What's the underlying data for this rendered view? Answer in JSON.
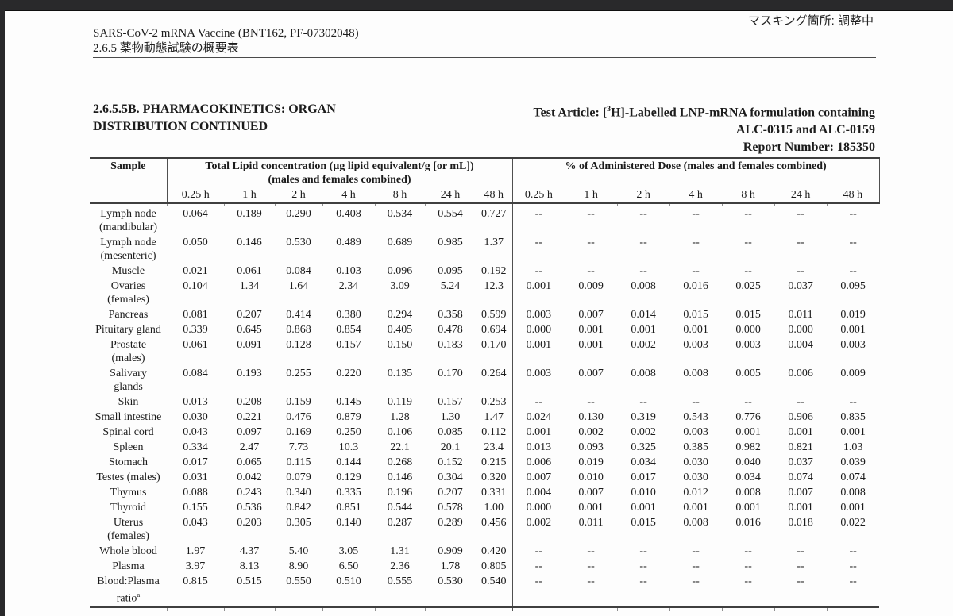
{
  "page": {
    "masking_note": "マスキング箇所: 調整中",
    "header_line1": "SARS-CoV-2 mRNA Vaccine (BNT162, PF-07302048)",
    "header_line2": "2.6.5 薬物動態試験の概要表"
  },
  "title": {
    "left_line1": "2.6.5.5B.  PHARMACOKINETICS: ORGAN",
    "left_line2": "DISTRIBUTION CONTINUED",
    "right1_pre": "Test Article: [",
    "right1_sup": "3",
    "right1_post": "H]-Labelled LNP-mRNA formulation containing",
    "right_line2": "ALC-0315 and ALC-0159",
    "right_line3": "Report Number: 185350"
  },
  "table": {
    "sample_header": "Sample",
    "lipid_header_line1": "Total Lipid concentration (µg lipid equivalent/g [or mL])",
    "lipid_header_line2": "(males and females combined)",
    "dose_header": "% of Administered Dose (males and females combined)",
    "time_labels": [
      "0.25 h",
      "1 h",
      "2 h",
      "4 h",
      "8 h",
      "24 h",
      "48 h"
    ],
    "rows": [
      {
        "sample_lines": [
          "Lymph node",
          "(mandibular)"
        ],
        "lipid": [
          "0.064",
          "0.189",
          "0.290",
          "0.408",
          "0.534",
          "0.554",
          "0.727"
        ],
        "dose": [
          "--",
          "--",
          "--",
          "--",
          "--",
          "--",
          "--"
        ]
      },
      {
        "sample_lines": [
          "Lymph node",
          "(mesenteric)"
        ],
        "lipid": [
          "0.050",
          "0.146",
          "0.530",
          "0.489",
          "0.689",
          "0.985",
          "1.37"
        ],
        "dose": [
          "--",
          "--",
          "--",
          "--",
          "--",
          "--",
          "--"
        ]
      },
      {
        "sample_lines": [
          "Muscle"
        ],
        "lipid": [
          "0.021",
          "0.061",
          "0.084",
          "0.103",
          "0.096",
          "0.095",
          "0.192"
        ],
        "dose": [
          "--",
          "--",
          "--",
          "--",
          "--",
          "--",
          "--"
        ]
      },
      {
        "sample_lines": [
          "Ovaries",
          "(females)"
        ],
        "lipid": [
          "0.104",
          "1.34",
          "1.64",
          "2.34",
          "3.09",
          "5.24",
          "12.3"
        ],
        "dose": [
          "0.001",
          "0.009",
          "0.008",
          "0.016",
          "0.025",
          "0.037",
          "0.095"
        ]
      },
      {
        "sample_lines": [
          "Pancreas"
        ],
        "lipid": [
          "0.081",
          "0.207",
          "0.414",
          "0.380",
          "0.294",
          "0.358",
          "0.599"
        ],
        "dose": [
          "0.003",
          "0.007",
          "0.014",
          "0.015",
          "0.015",
          "0.011",
          "0.019"
        ]
      },
      {
        "sample_lines": [
          "Pituitary gland"
        ],
        "lipid": [
          "0.339",
          "0.645",
          "0.868",
          "0.854",
          "0.405",
          "0.478",
          "0.694"
        ],
        "dose": [
          "0.000",
          "0.001",
          "0.001",
          "0.001",
          "0.000",
          "0.000",
          "0.001"
        ]
      },
      {
        "sample_lines": [
          "Prostate",
          "(males)"
        ],
        "lipid": [
          "0.061",
          "0.091",
          "0.128",
          "0.157",
          "0.150",
          "0.183",
          "0.170"
        ],
        "dose": [
          "0.001",
          "0.001",
          "0.002",
          "0.003",
          "0.003",
          "0.004",
          "0.003"
        ]
      },
      {
        "sample_lines": [
          "Salivary",
          "glands"
        ],
        "lipid": [
          "0.084",
          "0.193",
          "0.255",
          "0.220",
          "0.135",
          "0.170",
          "0.264"
        ],
        "dose": [
          "0.003",
          "0.007",
          "0.008",
          "0.008",
          "0.005",
          "0.006",
          "0.009"
        ]
      },
      {
        "sample_lines": [
          "Skin"
        ],
        "lipid": [
          "0.013",
          "0.208",
          "0.159",
          "0.145",
          "0.119",
          "0.157",
          "0.253"
        ],
        "dose": [
          "--",
          "--",
          "--",
          "--",
          "--",
          "--",
          "--"
        ]
      },
      {
        "sample_lines": [
          "Small intestine"
        ],
        "lipid": [
          "0.030",
          "0.221",
          "0.476",
          "0.879",
          "1.28",
          "1.30",
          "1.47"
        ],
        "dose": [
          "0.024",
          "0.130",
          "0.319",
          "0.543",
          "0.776",
          "0.906",
          "0.835"
        ]
      },
      {
        "sample_lines": [
          "Spinal cord"
        ],
        "lipid": [
          "0.043",
          "0.097",
          "0.169",
          "0.250",
          "0.106",
          "0.085",
          "0.112"
        ],
        "dose": [
          "0.001",
          "0.002",
          "0.002",
          "0.003",
          "0.001",
          "0.001",
          "0.001"
        ]
      },
      {
        "sample_lines": [
          "Spleen"
        ],
        "lipid": [
          "0.334",
          "2.47",
          "7.73",
          "10.3",
          "22.1",
          "20.1",
          "23.4"
        ],
        "dose": [
          "0.013",
          "0.093",
          "0.325",
          "0.385",
          "0.982",
          "0.821",
          "1.03"
        ]
      },
      {
        "sample_lines": [
          "Stomach"
        ],
        "lipid": [
          "0.017",
          "0.065",
          "0.115",
          "0.144",
          "0.268",
          "0.152",
          "0.215"
        ],
        "dose": [
          "0.006",
          "0.019",
          "0.034",
          "0.030",
          "0.040",
          "0.037",
          "0.039"
        ]
      },
      {
        "sample_lines": [
          "Testes (males)"
        ],
        "lipid": [
          "0.031",
          "0.042",
          "0.079",
          "0.129",
          "0.146",
          "0.304",
          "0.320"
        ],
        "dose": [
          "0.007",
          "0.010",
          "0.017",
          "0.030",
          "0.034",
          "0.074",
          "0.074"
        ]
      },
      {
        "sample_lines": [
          "Thymus"
        ],
        "lipid": [
          "0.088",
          "0.243",
          "0.340",
          "0.335",
          "0.196",
          "0.207",
          "0.331"
        ],
        "dose": [
          "0.004",
          "0.007",
          "0.010",
          "0.012",
          "0.008",
          "0.007",
          "0.008"
        ]
      },
      {
        "sample_lines": [
          "Thyroid"
        ],
        "lipid": [
          "0.155",
          "0.536",
          "0.842",
          "0.851",
          "0.544",
          "0.578",
          "1.00"
        ],
        "dose": [
          "0.000",
          "0.001",
          "0.001",
          "0.001",
          "0.001",
          "0.001",
          "0.001"
        ]
      },
      {
        "sample_lines": [
          "Uterus",
          "(females)"
        ],
        "lipid": [
          "0.043",
          "0.203",
          "0.305",
          "0.140",
          "0.287",
          "0.289",
          "0.456"
        ],
        "dose": [
          "0.002",
          "0.011",
          "0.015",
          "0.008",
          "0.016",
          "0.018",
          "0.022"
        ]
      },
      {
        "sample_lines": [
          "Whole blood"
        ],
        "lipid": [
          "1.97",
          "4.37",
          "5.40",
          "3.05",
          "1.31",
          "0.909",
          "0.420"
        ],
        "dose": [
          "--",
          "--",
          "--",
          "--",
          "--",
          "--",
          "--"
        ]
      },
      {
        "sample_lines": [
          "Plasma"
        ],
        "lipid": [
          "3.97",
          "8.13",
          "8.90",
          "6.50",
          "2.36",
          "1.78",
          "0.805"
        ],
        "dose": [
          "--",
          "--",
          "--",
          "--",
          "--",
          "--",
          "--"
        ]
      },
      {
        "sample_lines": [
          "Blood:Plasma",
          "ratio"
        ],
        "sample_sup": "a",
        "lipid": [
          "0.815",
          "0.515",
          "0.550",
          "0.510",
          "0.555",
          "0.530",
          "0.540"
        ],
        "dose": [
          "--",
          "--",
          "--",
          "--",
          "--",
          "--",
          "--"
        ]
      }
    ]
  }
}
